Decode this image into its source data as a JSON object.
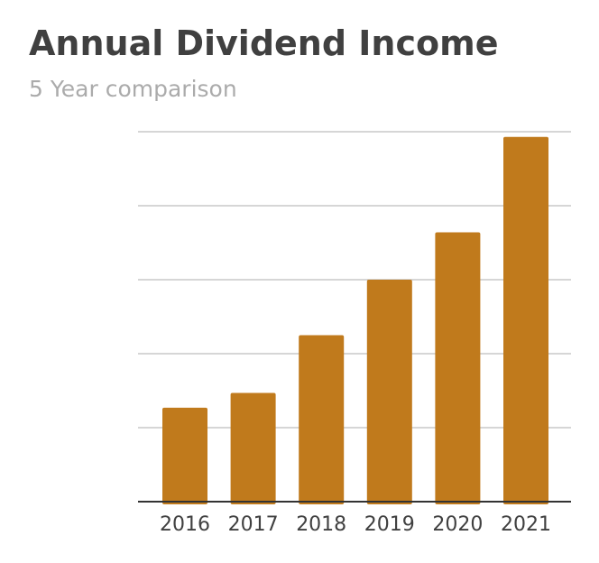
{
  "chart_data": {
    "type": "bar",
    "title": "Annual Dividend Income",
    "subtitle": "5 Year comparison",
    "categories": [
      "2016",
      "2017",
      "2018",
      "2019",
      "2020",
      "2021"
    ],
    "values": [
      1.27,
      1.47,
      2.25,
      3.0,
      3.64,
      4.93
    ],
    "ylim": [
      0,
      5
    ],
    "grid": true,
    "y_tick_labels_shown": false,
    "bar_color": "#c07a1c",
    "legend": "none"
  }
}
